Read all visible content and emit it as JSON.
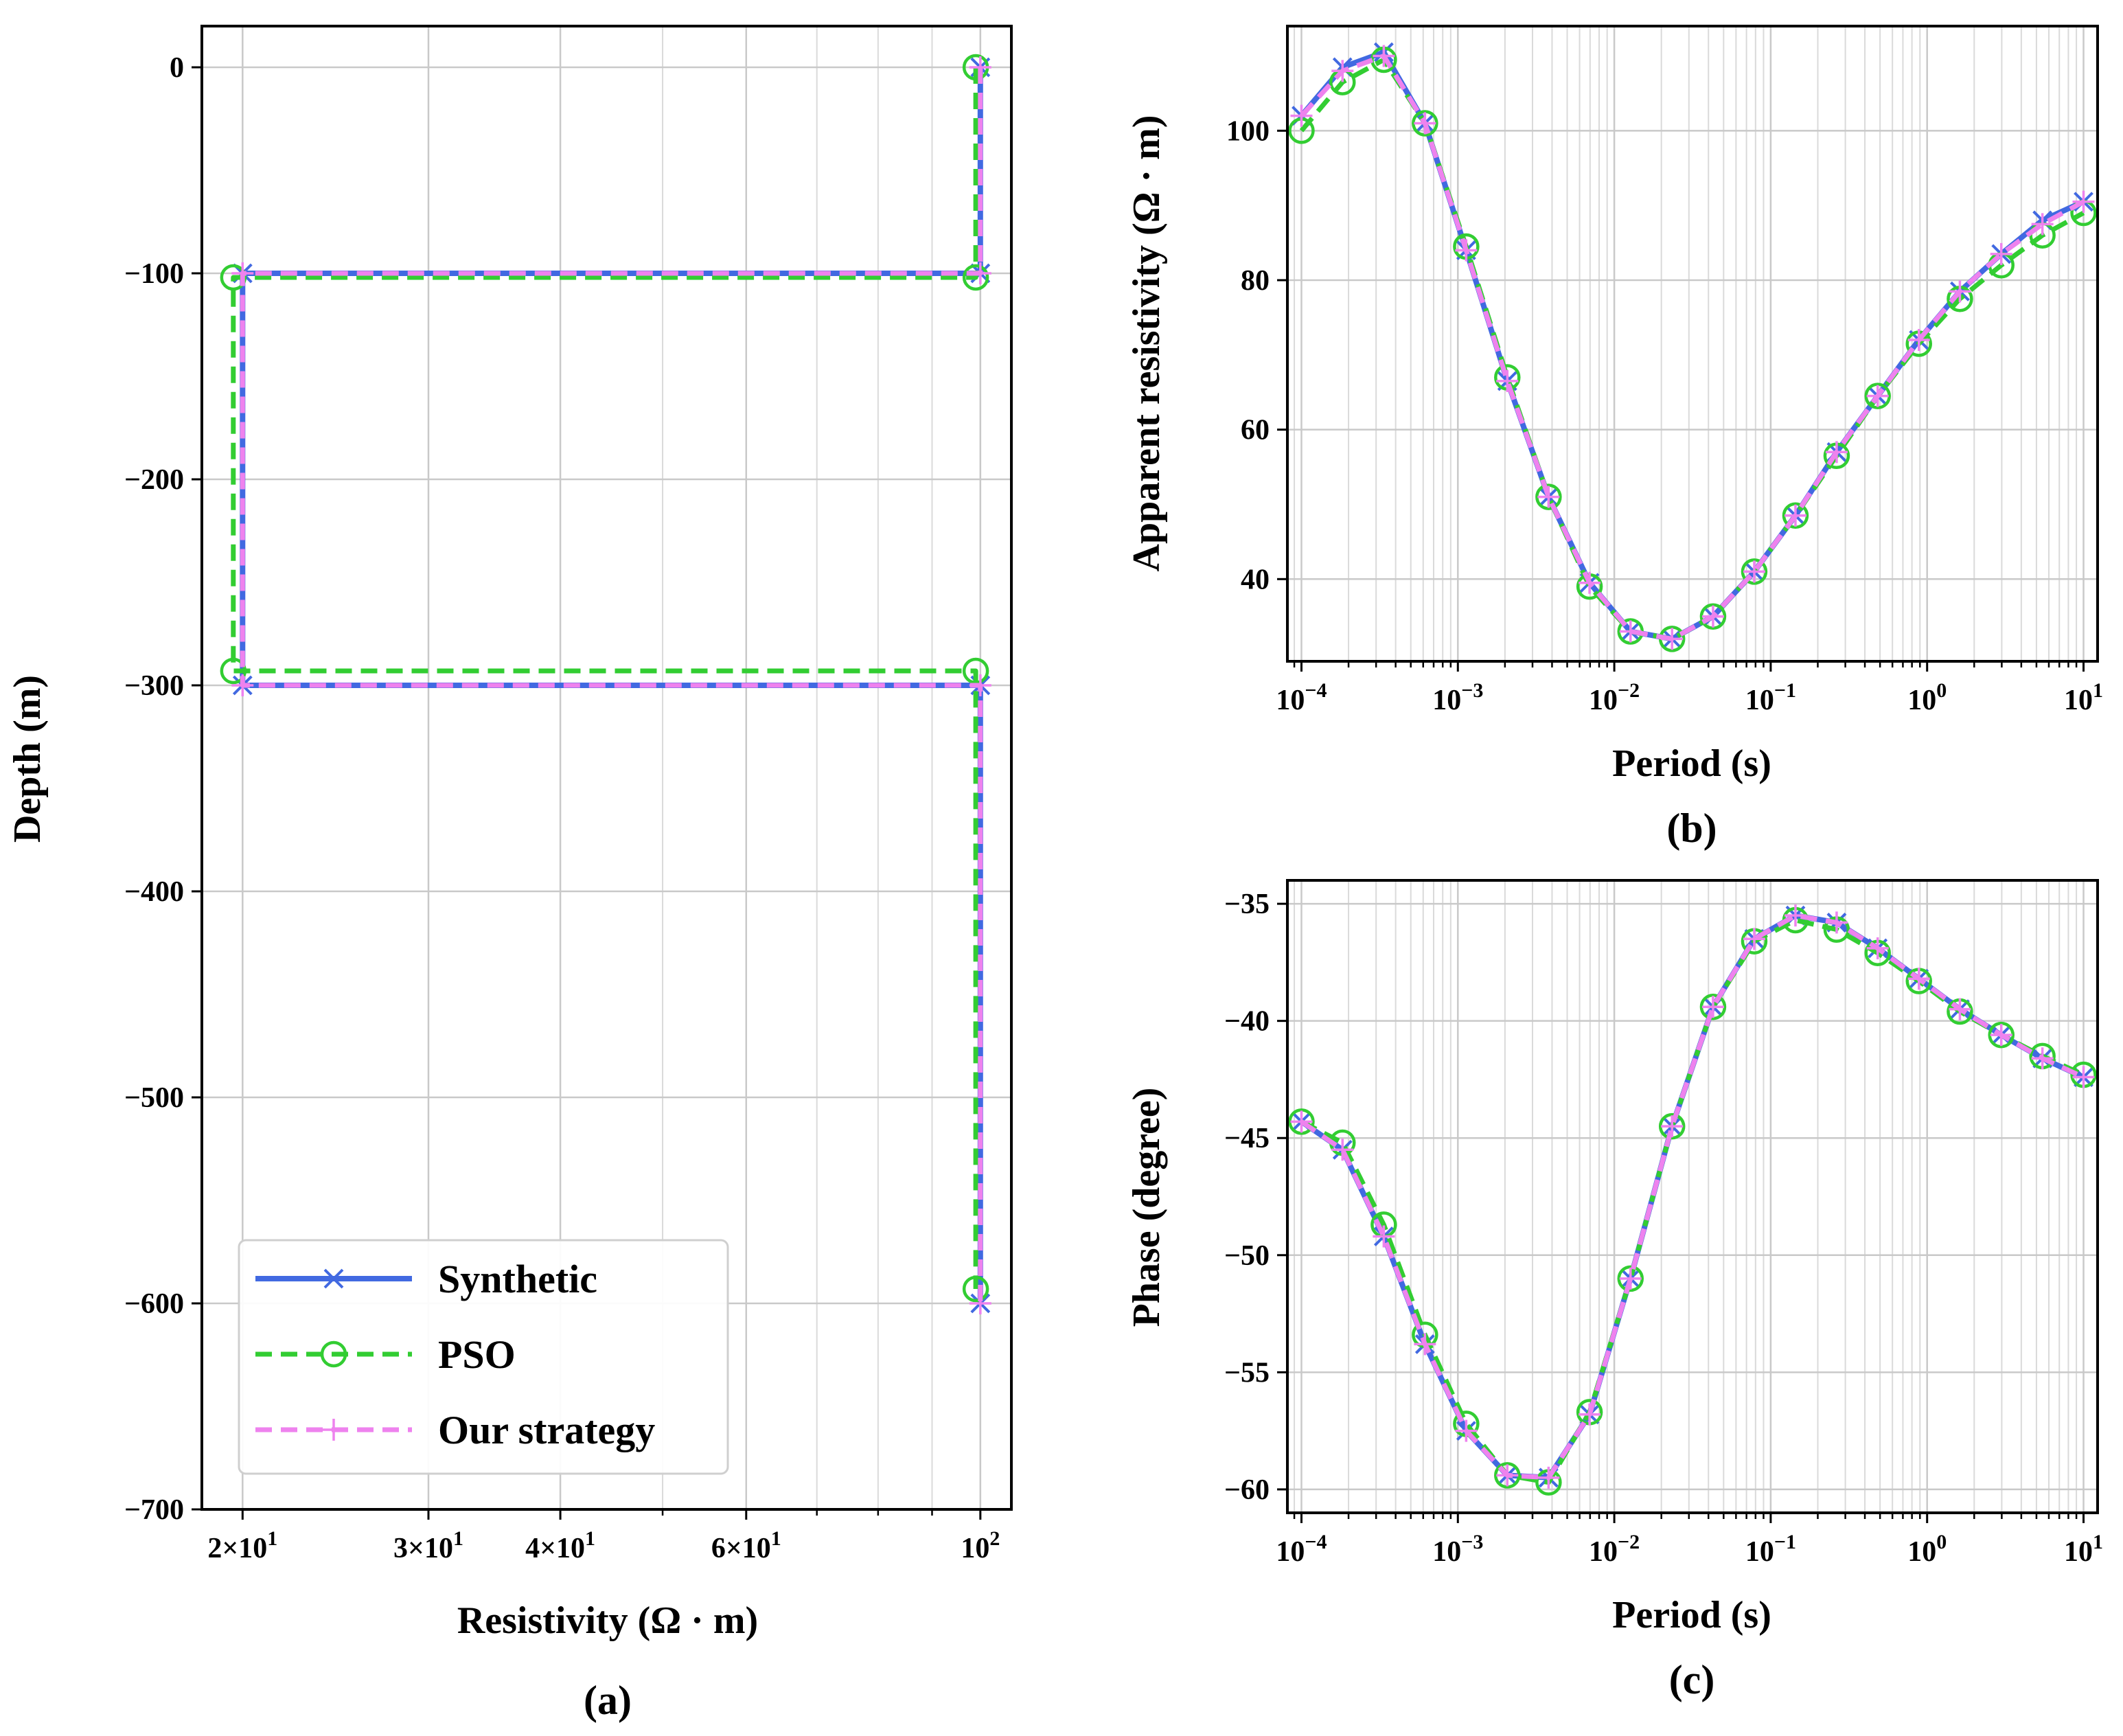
{
  "colors": {
    "synthetic": "#4169e1",
    "pso": "#32cd32",
    "ours": "#ee82ee"
  },
  "legend": {
    "synthetic": "Synthetic",
    "pso": "PSO",
    "ours": "Our strategy"
  },
  "panels": {
    "a": "(a)",
    "b": "(b)",
    "c": "(c)"
  },
  "chart_data": [
    {
      "id": "a",
      "type": "line",
      "xlabel": "Resistivity (Ω · m)",
      "ylabel": "Depth (m)",
      "xscale": "log",
      "xlim": [
        18.3,
        107
      ],
      "ylim": [
        -700,
        20
      ],
      "yticks": [
        0,
        -100,
        -200,
        -300,
        -400,
        -500,
        -600,
        -700
      ],
      "ytick_labels": [
        "0",
        "−100",
        "−200",
        "−300",
        "−400",
        "−500",
        "−600",
        "−700"
      ],
      "xticks": [
        {
          "v": 20,
          "m": "2×10",
          "e": "1"
        },
        {
          "v": 30,
          "m": "3×10",
          "e": "1"
        },
        {
          "v": 40,
          "m": "4×10",
          "e": "1"
        },
        {
          "v": 60,
          "m": "6×10",
          "e": "1"
        },
        {
          "v": 100,
          "m": "10",
          "e": "2"
        }
      ],
      "minor_x": [
        50,
        70,
        80,
        90
      ],
      "legend_position": "lower-left",
      "series": [
        {
          "name": "Synthetic",
          "key": "synthetic",
          "x": [
            100,
            100,
            20,
            20,
            100,
            100
          ],
          "y": [
            0,
            -100,
            -100,
            -300,
            -300,
            -600
          ]
        },
        {
          "name": "PSO",
          "key": "pso",
          "x": [
            99,
            99,
            19.6,
            19.6,
            99,
            99
          ],
          "y": [
            0,
            -102,
            -102,
            -293,
            -293,
            -593
          ]
        },
        {
          "name": "Our strategy",
          "key": "ours",
          "x": [
            100,
            100,
            20,
            20,
            100,
            100
          ],
          "y": [
            0,
            -100,
            -100,
            -300,
            -300,
            -600
          ]
        }
      ]
    },
    {
      "id": "b",
      "type": "line",
      "xlabel": "Period (s)",
      "ylabel": "Apparent resistivity (Ω · m)",
      "xscale": "log",
      "xlim": [
        8.13e-05,
        12.3
      ],
      "ylim": [
        29,
        114
      ],
      "yticks": [
        40,
        60,
        80,
        100
      ],
      "ytick_labels": [
        "40",
        "60",
        "80",
        "100"
      ],
      "xticks": [
        {
          "v": 0.0001,
          "m": "10",
          "e": "−4"
        },
        {
          "v": 0.001,
          "m": "10",
          "e": "−3"
        },
        {
          "v": 0.01,
          "m": "10",
          "e": "−2"
        },
        {
          "v": 0.1,
          "m": "10",
          "e": "−1"
        },
        {
          "v": 1,
          "m": "10",
          "e": "0"
        },
        {
          "v": 10,
          "m": "10",
          "e": "1"
        }
      ],
      "x": [
        0.0001,
        0.000183,
        0.000336,
        0.000616,
        0.00113,
        0.00207,
        0.0038,
        0.00695,
        0.0127,
        0.0234,
        0.0428,
        0.0785,
        0.144,
        0.264,
        0.483,
        0.886,
        1.62,
        2.98,
        5.46,
        10
      ],
      "series": [
        {
          "name": "Synthetic",
          "key": "synthetic",
          "values": [
            102,
            108.5,
            110.5,
            101,
            84,
            66.5,
            51,
            39.5,
            33,
            32,
            35,
            41,
            48.5,
            57,
            64.5,
            72,
            78.5,
            83.5,
            88,
            90.5
          ]
        },
        {
          "name": "PSO",
          "key": "pso",
          "values": [
            100,
            106.5,
            109.5,
            101,
            84.5,
            67,
            51,
            39,
            33,
            32,
            35,
            41,
            48.5,
            56.5,
            64.5,
            71.5,
            77.5,
            82,
            86,
            89
          ]
        },
        {
          "name": "Our strategy",
          "key": "ours",
          "values": [
            102,
            108,
            110,
            101,
            84,
            66.5,
            51,
            39.5,
            33,
            32,
            35,
            41,
            48.5,
            57,
            64.5,
            72,
            78.5,
            83.5,
            87.5,
            90.5
          ]
        }
      ]
    },
    {
      "id": "c",
      "type": "line",
      "xlabel": "Period (s)",
      "ylabel": "Phase (degree)",
      "xscale": "log",
      "xlim": [
        8.13e-05,
        12.3
      ],
      "ylim": [
        -61,
        -34
      ],
      "yticks": [
        -35,
        -40,
        -45,
        -50,
        -55,
        -60
      ],
      "ytick_labels": [
        "−35",
        "−40",
        "−45",
        "−50",
        "−55",
        "−60"
      ],
      "xticks": [
        {
          "v": 0.0001,
          "m": "10",
          "e": "−4"
        },
        {
          "v": 0.001,
          "m": "10",
          "e": "−3"
        },
        {
          "v": 0.01,
          "m": "10",
          "e": "−2"
        },
        {
          "v": 0.1,
          "m": "10",
          "e": "−1"
        },
        {
          "v": 1,
          "m": "10",
          "e": "0"
        },
        {
          "v": 10,
          "m": "10",
          "e": "1"
        }
      ],
      "x": [
        0.0001,
        0.000183,
        0.000336,
        0.000616,
        0.00113,
        0.00207,
        0.0038,
        0.00695,
        0.0127,
        0.0234,
        0.0428,
        0.0785,
        0.144,
        0.264,
        0.483,
        0.886,
        1.62,
        2.98,
        5.46,
        10
      ],
      "series": [
        {
          "name": "Synthetic",
          "key": "synthetic",
          "values": [
            -44.3,
            -45.5,
            -49.2,
            -53.8,
            -57.5,
            -59.4,
            -59.5,
            -56.8,
            -51,
            -44.5,
            -39.4,
            -36.5,
            -35.5,
            -35.8,
            -36.9,
            -38.2,
            -39.5,
            -40.6,
            -41.6,
            -42.4
          ]
        },
        {
          "name": "PSO",
          "key": "pso",
          "values": [
            -44.3,
            -45.2,
            -48.7,
            -53.4,
            -57.2,
            -59.4,
            -59.7,
            -56.7,
            -51,
            -44.5,
            -39.4,
            -36.6,
            -35.7,
            -36.1,
            -37.1,
            -38.3,
            -39.6,
            -40.6,
            -41.5,
            -42.3
          ]
        },
        {
          "name": "Our strategy",
          "key": "ours",
          "values": [
            -44.3,
            -45.5,
            -49.2,
            -53.8,
            -57.5,
            -59.4,
            -59.5,
            -56.8,
            -51,
            -44.5,
            -39.4,
            -36.5,
            -35.5,
            -35.8,
            -36.9,
            -38.2,
            -39.5,
            -40.6,
            -41.6,
            -42.4
          ]
        }
      ]
    }
  ]
}
